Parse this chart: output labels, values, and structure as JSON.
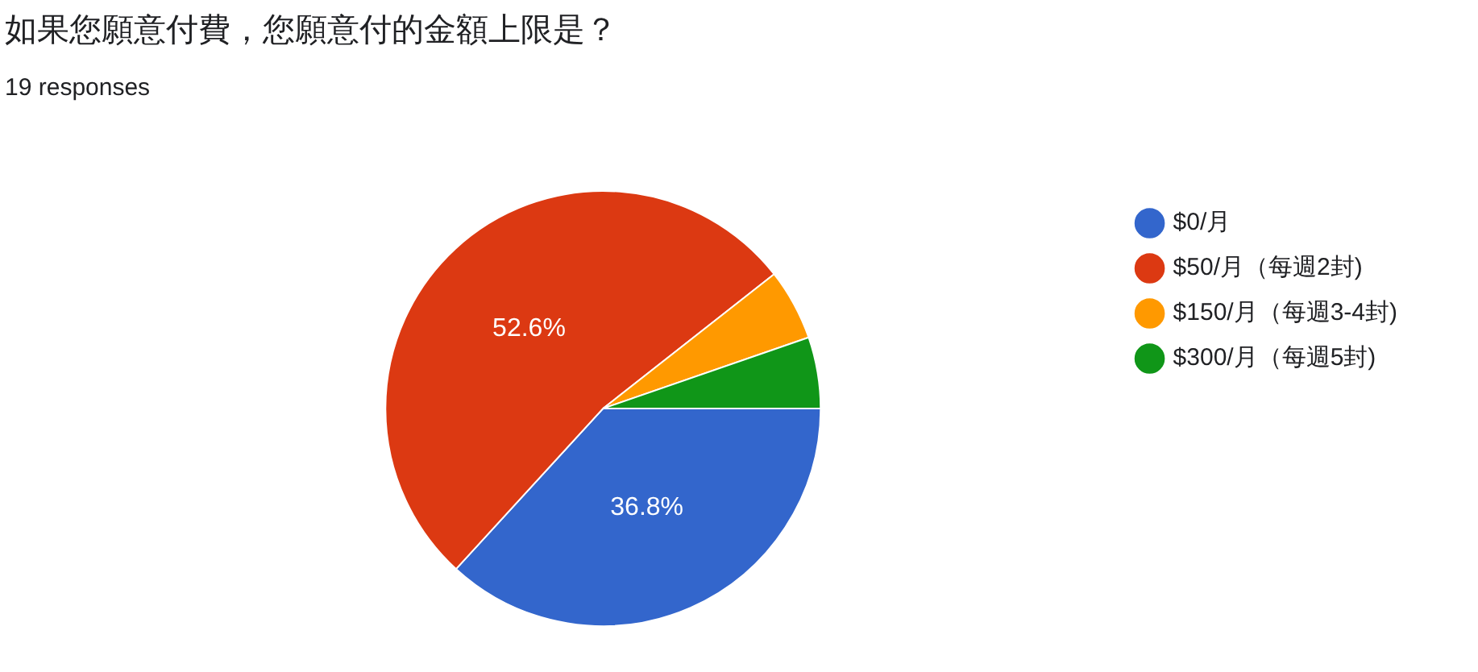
{
  "chart_data": {
    "type": "pie",
    "title": "如果您願意付費，您願意付的金額上限是？",
    "subtitle": "19 responses",
    "categories": [
      "$0/月",
      "$50/月（每週2封)",
      "$150/月（每週3-4封)",
      "$300/月（每週5封)"
    ],
    "values": [
      36.8,
      52.6,
      5.3,
      5.3
    ],
    "colors": [
      "#3366cc",
      "#dc3912",
      "#ff9900",
      "#109618"
    ],
    "value_labels": [
      "36.8%",
      "52.6%",
      null,
      null
    ],
    "legend": "right"
  }
}
